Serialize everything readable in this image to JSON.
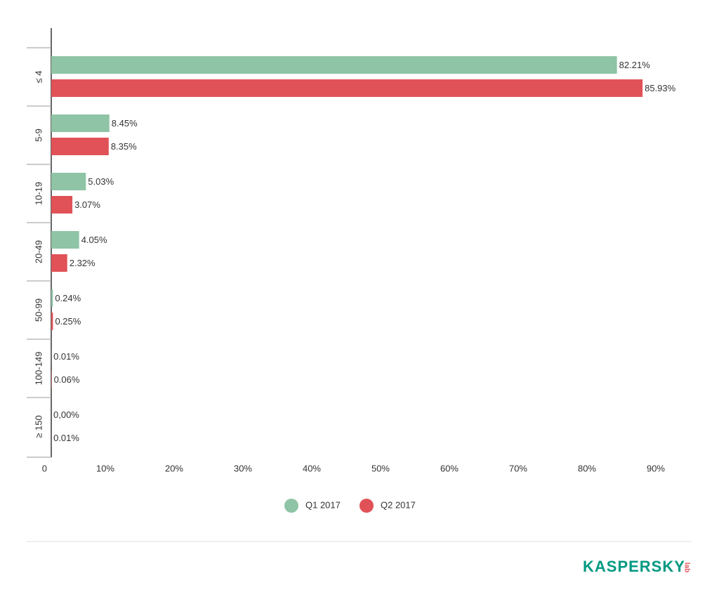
{
  "chart_data": {
    "type": "bar",
    "orientation": "horizontal",
    "categories": [
      "≤ 4",
      "5-9",
      "10-19",
      "20-49",
      "50-99",
      "100-149",
      "≥ 150"
    ],
    "series": [
      {
        "name": "Q1 2017",
        "color": "#8fc4a6",
        "values": [
          82.21,
          8.45,
          5.03,
          4.05,
          0.24,
          0.01,
          0
        ],
        "value_labels": [
          "82.21%",
          "8.45%",
          "5.03%",
          "4.05%",
          "0.24%",
          "0.01%",
          "0,00%"
        ]
      },
      {
        "name": "Q2 2017",
        "color": "#e05257",
        "values": [
          85.93,
          8.35,
          3.07,
          2.32,
          0.25,
          0.06,
          0.01
        ],
        "value_labels": [
          "85.93%",
          "8.35%",
          "3.07%",
          "2.32%",
          "0.25%",
          "0.06%",
          "0.01%"
        ]
      }
    ],
    "xlim": [
      0,
      90
    ],
    "xticks": [
      0,
      {
        "value": 10,
        "label": "10%"
      },
      {
        "value": 20,
        "label": "20%"
      },
      {
        "value": 30,
        "label": "30%"
      },
      {
        "value": 40,
        "label": "40%"
      },
      {
        "value": 50,
        "label": "50%"
      },
      {
        "value": 60,
        "label": "60%"
      },
      {
        "value": 70,
        "label": "70%"
      },
      {
        "value": 80,
        "label": "80%"
      },
      {
        "value": 90,
        "label": "90%"
      }
    ],
    "grid": false
  },
  "logo": {
    "main": "KASPERSKY",
    "sub": "lab"
  }
}
